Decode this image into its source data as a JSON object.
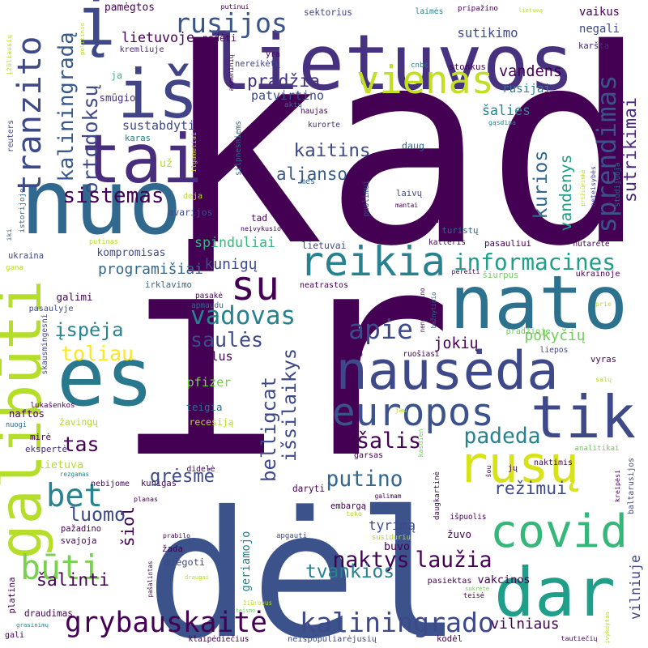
{
  "words": [
    {
      "text": "kad",
      "color": "#440154"
    },
    {
      "text": "ir",
      "color": "#440154"
    },
    {
      "text": "dėl",
      "color": "#3b528b"
    },
    {
      "text": "lietuvos",
      "color": "#46327e"
    },
    {
      "text": "nuo",
      "color": "#31688e"
    },
    {
      "text": "iš",
      "color": "#414487"
    },
    {
      "text": "tai",
      "color": "#472d7b"
    },
    {
      "text": "į",
      "color": "#3e4989"
    },
    {
      "text": "rusijos",
      "color": "#39568c"
    },
    {
      "text": "nato",
      "color": "#2c728e"
    },
    {
      "text": "nausėda",
      "color": "#3e4989"
    },
    {
      "text": "es",
      "color": "#2a788e"
    },
    {
      "text": "europos",
      "color": "#3b528b"
    },
    {
      "text": "tik",
      "color": "#3e4989"
    },
    {
      "text": "rusų",
      "color": "#d8e219"
    },
    {
      "text": "covid",
      "color": "#35b779"
    },
    {
      "text": "dar",
      "color": "#1f9e89"
    },
    {
      "text": "galibūti",
      "color": "#b5de2b"
    },
    {
      "text": "bet",
      "color": "#26828e"
    },
    {
      "text": "būti",
      "color": "#7ad151"
    },
    {
      "text": "su",
      "color": "#440154"
    },
    {
      "text": "reikia",
      "color": "#26828e"
    },
    {
      "text": "vienas",
      "color": "#c2df23"
    },
    {
      "text": "tranzito",
      "color": "#3e4989"
    },
    {
      "text": "kaliningradą",
      "color": "#38598c"
    },
    {
      "text": "ortodoksų",
      "color": "#3e4989"
    },
    {
      "text": "sprendimas",
      "color": "#3b528b"
    },
    {
      "text": "sutrikimai",
      "color": "#482878"
    },
    {
      "text": "kurios",
      "color": "#31688e"
    },
    {
      "text": "vandenys",
      "color": "#1f9e89"
    },
    {
      "text": "prižiūrinkė",
      "color": "#b5de2b"
    },
    {
      "text": "neteisybės",
      "color": "#414487"
    },
    {
      "text": "studijuoja",
      "color": "#31688e"
    },
    {
      "text": "pradžia",
      "color": "#46327e"
    },
    {
      "text": "patvirtino",
      "color": "#3e4989"
    },
    {
      "text": "lietuvoje",
      "color": "#440154"
    },
    {
      "text": "sustabdyti",
      "color": "#3e4989"
    },
    {
      "text": "smūgio",
      "color": "#472d7b"
    },
    {
      "text": "ja",
      "color": "#35b779"
    },
    {
      "text": "pamėgtos",
      "color": "#440154"
    },
    {
      "text": "putinui",
      "color": "#440154"
    },
    {
      "text": "padėti",
      "color": "#440154"
    },
    {
      "text": "kremliuje",
      "color": "#482878"
    },
    {
      "text": "yra",
      "color": "#440154"
    },
    {
      "text": "sektorius",
      "color": "#3e4989"
    },
    {
      "text": "laimės",
      "color": "#26828e"
    },
    {
      "text": "pripažino",
      "color": "#440154"
    },
    {
      "text": "lietuvą",
      "color": "#b5de2b"
    },
    {
      "text": "sutikimo",
      "color": "#3e4989"
    },
    {
      "text": "vaikus",
      "color": "#440154"
    },
    {
      "text": "negali",
      "color": "#3e4989"
    },
    {
      "text": "karšta",
      "color": "#482878"
    },
    {
      "text": "vandens",
      "color": "#440154"
    },
    {
      "text": "rusijai",
      "color": "#26828e"
    },
    {
      "text": "stonkus",
      "color": "#440154"
    },
    {
      "text": "cnbc",
      "color": "#26828e"
    },
    {
      "text": "nereikėtų",
      "color": "#3e4989"
    },
    {
      "text": "aktų",
      "color": "#31688e"
    },
    {
      "text": "naujas",
      "color": "#440154"
    },
    {
      "text": "kurorte",
      "color": "#482878"
    },
    {
      "text": "šalies",
      "color": "#26828e"
    },
    {
      "text": "gąsdina",
      "color": "#26828e"
    },
    {
      "text": "daug",
      "color": "#31688e"
    },
    {
      "text": "kaitins",
      "color": "#3e4989"
    },
    {
      "text": "aljanso",
      "color": "#38598c"
    },
    {
      "text": "silpnesniems",
      "color": "#31688e"
    },
    {
      "text": "asmeninių",
      "color": "#440154"
    },
    {
      "text": "mes",
      "color": "#31688e"
    },
    {
      "text": "puolimui",
      "color": "#3e4989"
    },
    {
      "text": "laivų",
      "color": "#3e4989"
    },
    {
      "text": "mantai",
      "color": "#440154"
    },
    {
      "text": "tad",
      "color": "#440154"
    },
    {
      "text": "neįvykusio",
      "color": "#440154"
    },
    {
      "text": "ne",
      "color": "#440154"
    },
    {
      "text": "turistų",
      "color": "#31688e"
    },
    {
      "text": "katleris",
      "color": "#440154"
    },
    {
      "text": "pasauliui",
      "color": "#440154"
    },
    {
      "text": "nutarėte",
      "color": "#440154"
    },
    {
      "text": "informacines",
      "color": "#1f9e89"
    },
    {
      "text": "lietuvai",
      "color": "#3e4989"
    },
    {
      "text": "spinduliai",
      "color": "#35b779"
    },
    {
      "text": "kompromisas",
      "color": "#3e4989"
    },
    {
      "text": "programišiai",
      "color": "#31688e"
    },
    {
      "text": "kunigų",
      "color": "#3e4989"
    },
    {
      "text": "ukraina",
      "color": "#3e4989"
    },
    {
      "text": "gana",
      "color": "#b5de2b"
    },
    {
      "text": "istorijoje",
      "color": "#31688e"
    },
    {
      "text": "iki",
      "color": "#31688e"
    },
    {
      "text": "ilgametiai",
      "color": "#b5de2b"
    },
    {
      "text": "už",
      "color": "#b5de2b"
    },
    {
      "text": "karas",
      "color": "#26828e"
    },
    {
      "text": "deja",
      "color": "#b5de2b"
    },
    {
      "text": "avarijos",
      "color": "#3e4989"
    },
    {
      "text": "sistemas",
      "color": "#440154"
    },
    {
      "text": "reuters",
      "color": "#3e4989"
    },
    {
      "text": "įžūliausių",
      "color": "#b5de2b"
    },
    {
      "text": "politinis",
      "color": "#b5de2b"
    },
    {
      "text": "putinas",
      "color": "#b5de2b"
    },
    {
      "text": "galimi",
      "color": "#440154"
    },
    {
      "text": "irklavimo",
      "color": "#31688e"
    },
    {
      "text": "pasakė",
      "color": "#440154"
    },
    {
      "text": "apmaudu",
      "color": "#31688e"
    },
    {
      "text": "vadovas",
      "color": "#26828e"
    },
    {
      "text": "įspėja",
      "color": "#26828e"
    },
    {
      "text": "saulės",
      "color": "#3e4989"
    },
    {
      "text": "toliau",
      "color": "#fde725"
    },
    {
      "text": "apie",
      "color": "#3e4989"
    },
    {
      "text": "pasaulyje",
      "color": "#3e4989"
    },
    {
      "text": "skausmingesni",
      "color": "#3e4989"
    },
    {
      "text": "neatrastos",
      "color": "#440154"
    },
    {
      "text": "nenudžiugino",
      "color": "#440154"
    },
    {
      "text": "bažnytinio",
      "color": "#31688e"
    },
    {
      "text": "pereiti",
      "color": "#440154"
    },
    {
      "text": "šiurpus",
      "color": "#6ece58"
    },
    {
      "text": "ukrainoje",
      "color": "#440154"
    },
    {
      "text": "prie",
      "color": "#b5de2b"
    },
    {
      "text": "pokyčių",
      "color": "#6ece58"
    },
    {
      "text": "liepos",
      "color": "#3e4989"
    },
    {
      "text": "pradžioje",
      "color": "#6ece58"
    },
    {
      "text": "jokių",
      "color": "#440154"
    },
    {
      "text": "ruošiasi",
      "color": "#440154"
    },
    {
      "text": "teroro",
      "color": "#440154"
    },
    {
      "text": "belligcat",
      "color": "#3e4989"
    },
    {
      "text": "išsilaikys",
      "color": "#3e4989"
    },
    {
      "text": "gilus",
      "color": "#440154"
    },
    {
      "text": "pfizer",
      "color": "#7ad151"
    },
    {
      "text": "teigia",
      "color": "#31688e"
    },
    {
      "text": "recesiją",
      "color": "#b5de2b"
    },
    {
      "text": "vyras",
      "color": "#440154"
    },
    {
      "text": "salų",
      "color": "#b5de2b"
    },
    {
      "text": "naftos",
      "color": "#440154"
    },
    {
      "text": "lukašenkos",
      "color": "#440154"
    },
    {
      "text": "nuogi",
      "color": "#31688e"
    },
    {
      "text": "žavingų",
      "color": "#b5de2b"
    },
    {
      "text": "tas",
      "color": "#440154"
    },
    {
      "text": "mirė",
      "color": "#440154"
    },
    {
      "text": "ekspertė",
      "color": "#482878"
    },
    {
      "text": "lietuva",
      "color": "#b5de2b"
    },
    {
      "text": "rezgamas",
      "color": "#26828e"
    },
    {
      "text": "nebijome",
      "color": "#440154"
    },
    {
      "text": "kunigas",
      "color": "#440154"
    },
    {
      "text": "grėsmė",
      "color": "#3e4989"
    },
    {
      "text": "šalis",
      "color": "#440154"
    },
    {
      "text": "padeda",
      "color": "#26828e"
    },
    {
      "text": "jau",
      "color": "#b5de2b"
    },
    {
      "text": "kasdien",
      "color": "#6ece58"
    },
    {
      "text": "naktimis",
      "color": "#440154"
    },
    {
      "text": "analitikai",
      "color": "#6ece58"
    },
    {
      "text": "kreipėsi",
      "color": "#440154"
    },
    {
      "text": "baltarusijos",
      "color": "#3e4989"
    },
    {
      "text": "šou",
      "color": "#440154"
    },
    {
      "text": "jų",
      "color": "#440154"
    },
    {
      "text": "putino",
      "color": "#31688e"
    },
    {
      "text": "galimam",
      "color": "#440154"
    },
    {
      "text": "garsas",
      "color": "#440154"
    },
    {
      "text": "daryti",
      "color": "#440154"
    },
    {
      "text": "daugkartinė",
      "color": "#440154"
    },
    {
      "text": "režimui",
      "color": "#3e4989"
    },
    {
      "text": "embargą",
      "color": "#440154"
    },
    {
      "text": "teko",
      "color": "#b5de2b"
    },
    {
      "text": "tyrimą",
      "color": "#3e4989"
    },
    {
      "text": "susiduriu",
      "color": "#b5de2b"
    },
    {
      "text": "išpuolis",
      "color": "#440154"
    },
    {
      "text": "šiol",
      "color": "#440154"
    },
    {
      "text": "luomo",
      "color": "#3e4989"
    },
    {
      "text": "planas",
      "color": "#440154"
    },
    {
      "text": "didelė",
      "color": "#440154"
    },
    {
      "text": "pažadino",
      "color": "#440154"
    },
    {
      "text": "svajoja",
      "color": "#440154"
    },
    {
      "text": "šalinti",
      "color": "#440154"
    },
    {
      "text": "geriamojo",
      "color": "#26828e"
    },
    {
      "text": "miegoti",
      "color": "#3e4989"
    },
    {
      "text": "žada",
      "color": "#440154"
    },
    {
      "text": "prabilo",
      "color": "#440154"
    },
    {
      "text": "buvo",
      "color": "#440154"
    },
    {
      "text": "naktys",
      "color": "#440154"
    },
    {
      "text": "laužia",
      "color": "#440154"
    },
    {
      "text": "žuvo",
      "color": "#440154"
    },
    {
      "text": "apgauti",
      "color": "#3e4989"
    },
    {
      "text": "draugai",
      "color": "#b5de2b"
    },
    {
      "text": "pasiektas",
      "color": "#440154"
    },
    {
      "text": "vakcinos",
      "color": "#440154"
    },
    {
      "text": "tvankios",
      "color": "#26828e"
    },
    {
      "text": "grybauskaitė",
      "color": "#440154"
    },
    {
      "text": "kaliningrado",
      "color": "#3e4989"
    },
    {
      "text": "vilniaus",
      "color": "#440154"
    },
    {
      "text": "vilniuje",
      "color": "#3e4989"
    },
    {
      "text": "įvykdytas",
      "color": "#b5de2b"
    },
    {
      "text": "tautiečių",
      "color": "#440154"
    },
    {
      "text": "kodėl",
      "color": "#440154"
    },
    {
      "text": "neišpopuliarėjusių",
      "color": "#3e4989"
    },
    {
      "text": "klaipėdiečius",
      "color": "#440154"
    },
    {
      "text": "gali",
      "color": "#440154"
    },
    {
      "text": "grasinimų",
      "color": "#26828e"
    },
    {
      "text": "draudimas",
      "color": "#440154"
    },
    {
      "text": "platina",
      "color": "#440154"
    },
    {
      "text": "pašalintas",
      "color": "#440154"
    },
    {
      "text": "teismo",
      "color": "#6ece58"
    },
    {
      "text": "žiūrovus",
      "color": "#b5de2b"
    },
    {
      "text": "teisė",
      "color": "#440154"
    },
    {
      "text": "sukrėtė",
      "color": "#6ece58"
    }
  ]
}
